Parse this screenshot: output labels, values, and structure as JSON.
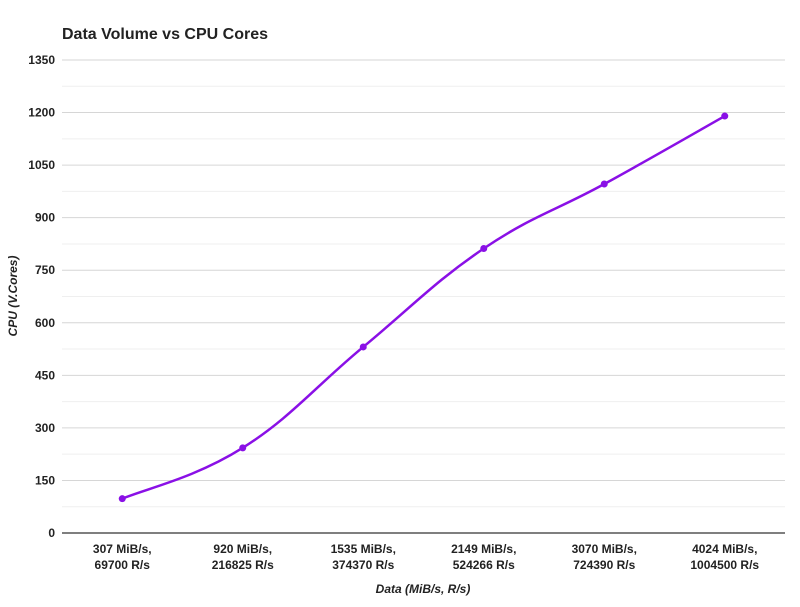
{
  "chart_data": {
    "type": "line",
    "title": "Data Volume vs CPU Cores",
    "xlabel": "Data (MiB/s, R/s)",
    "ylabel": "CPU (V.Cores)",
    "categories": [
      [
        "307 MiB/s,",
        "69700 R/s"
      ],
      [
        "920 MiB/s,",
        "216825 R/s"
      ],
      [
        "1535 MiB/s,",
        "374370 R/s"
      ],
      [
        "2149 MiB/s,",
        "524266 R/s"
      ],
      [
        "3070 MiB/s,",
        "724390 R/s"
      ],
      [
        "4024 MiB/s,",
        "1004500 R/s"
      ]
    ],
    "series": [
      {
        "name": "CPU (V.Cores)",
        "values": [
          98,
          243,
          531,
          812,
          996,
          1190
        ],
        "color": "#8a10e6"
      }
    ],
    "ylim": [
      0,
      1350
    ],
    "yticks": [
      0,
      150,
      300,
      450,
      600,
      750,
      900,
      1050,
      1200,
      1350
    ],
    "grid": true,
    "legend": "none"
  }
}
